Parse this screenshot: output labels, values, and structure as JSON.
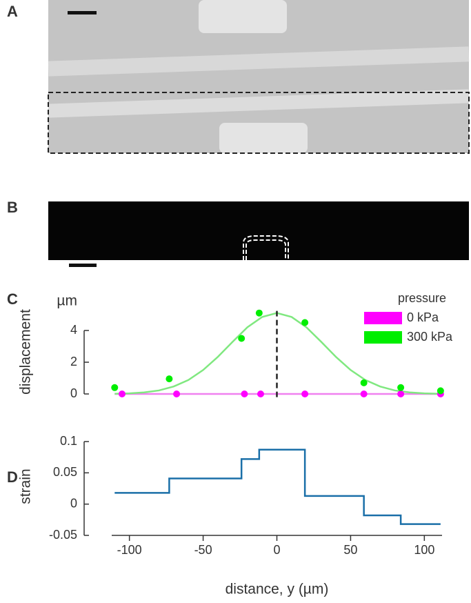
{
  "panels": {
    "a": "A",
    "b": "B",
    "c": "C",
    "d": "D"
  },
  "chart_data": [
    {
      "type": "scatter",
      "ylabel": "displacement",
      "yunit": "µm",
      "xlim": [
        -112,
        112
      ],
      "ylim": [
        -0.2,
        5.4
      ],
      "yticks": [
        0,
        2,
        4
      ],
      "grid": false,
      "legend": "upper right",
      "legend_title": "pressure",
      "vline": 0,
      "series": [
        {
          "name": "0 kPa",
          "color": "#ff00ff",
          "x": [
            -105,
            -68,
            -22,
            -11,
            19,
            59,
            84,
            111
          ],
          "values": [
            0,
            0,
            0,
            0,
            0,
            0,
            0,
            0
          ]
        },
        {
          "name": "300 kPa",
          "color": "#00ee00",
          "x": [
            -110,
            -73,
            -24,
            -12,
            19,
            59,
            84,
            111
          ],
          "values": [
            0.4,
            0.95,
            3.5,
            5.1,
            4.5,
            0.7,
            0.4,
            0.2
          ]
        }
      ],
      "fits": [
        {
          "color": "#f080f0",
          "x": [
            -110,
            112
          ],
          "values": [
            0,
            0
          ]
        },
        {
          "color": "#80e880",
          "x": [
            -110,
            -100,
            -90,
            -80,
            -70,
            -60,
            -50,
            -40,
            -30,
            -20,
            -10,
            0,
            10,
            20,
            30,
            40,
            50,
            60,
            70,
            80,
            90,
            100,
            110
          ],
          "values": [
            0.01,
            0.04,
            0.1,
            0.22,
            0.47,
            0.88,
            1.51,
            2.34,
            3.29,
            4.2,
            4.85,
            5.1,
            4.85,
            4.2,
            3.29,
            2.34,
            1.51,
            0.88,
            0.47,
            0.22,
            0.1,
            0.04,
            0.01
          ]
        }
      ]
    },
    {
      "type": "step",
      "ylabel": "strain",
      "xlabel": "distance, y (µm)",
      "xlim": [
        -112,
        112
      ],
      "ylim": [
        -0.05,
        0.1
      ],
      "yticks": [
        0.1,
        0.05,
        0,
        -0.05
      ],
      "xticks": [
        -100,
        -50,
        0,
        50,
        100
      ],
      "grid": false,
      "color": "#1a6fa8",
      "x": [
        -110,
        -73,
        -24,
        -12,
        19,
        59,
        84,
        111
      ],
      "values": [
        0.018,
        0.041,
        0.072,
        0.087,
        0.013,
        -0.018,
        -0.032,
        -0.032
      ]
    }
  ]
}
